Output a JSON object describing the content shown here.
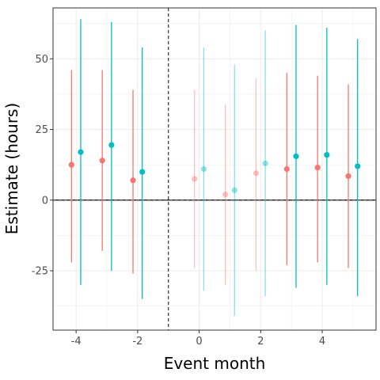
{
  "chart_data": {
    "type": "scatter",
    "title": "",
    "xlabel": "Event month",
    "ylabel": "Estimate (hours)",
    "xlim": [
      -4.75,
      5.75
    ],
    "ylim": [
      -46,
      68
    ],
    "xticks": [
      -4,
      -2,
      0,
      2,
      4
    ],
    "xtick_labels": [
      "-4",
      "-2",
      "0",
      "2",
      "4"
    ],
    "yticks": [
      -25,
      0,
      25,
      50
    ],
    "ytick_labels": [
      "-25",
      "0",
      "25",
      "50"
    ],
    "grid": true,
    "legend": "none",
    "reference_lines": {
      "vertical_dashed_x": -1,
      "horizontal_zero_y": 0
    },
    "colors": {
      "series_a": "#F8766D",
      "series_b": "#00BFC4",
      "panel_border": "#333333",
      "grid": "#ebebeb"
    },
    "series": [
      {
        "color": "#F8766D",
        "points": [
          {
            "x": -4.15,
            "y": 12.5,
            "ymin": -22,
            "ymax": 46,
            "faded": false
          },
          {
            "x": -3.15,
            "y": 14,
            "ymin": -18,
            "ymax": 46,
            "faded": false
          },
          {
            "x": -2.15,
            "y": 7,
            "ymin": -26,
            "ymax": 39,
            "faded": false
          },
          {
            "x": -0.15,
            "y": 7.5,
            "ymin": -24,
            "ymax": 39,
            "faded": true
          },
          {
            "x": 0.85,
            "y": 2,
            "ymin": -30,
            "ymax": 34,
            "faded": true
          },
          {
            "x": 1.85,
            "y": 9.5,
            "ymin": -25,
            "ymax": 43,
            "faded": true
          },
          {
            "x": 2.85,
            "y": 11,
            "ymin": -23,
            "ymax": 45,
            "faded": false
          },
          {
            "x": 3.85,
            "y": 11.5,
            "ymin": -22,
            "ymax": 44,
            "faded": false
          },
          {
            "x": 4.85,
            "y": 8.5,
            "ymin": -24,
            "ymax": 41,
            "faded": false
          }
        ]
      },
      {
        "color": "#00BFC4",
        "points": [
          {
            "x": -3.85,
            "y": 17,
            "ymin": -30,
            "ymax": 64,
            "faded": false
          },
          {
            "x": -2.85,
            "y": 19.5,
            "ymin": -25,
            "ymax": 63,
            "faded": false
          },
          {
            "x": -1.85,
            "y": 10,
            "ymin": -35,
            "ymax": 54,
            "faded": false
          },
          {
            "x": 0.15,
            "y": 11,
            "ymin": -32,
            "ymax": 54,
            "faded": true
          },
          {
            "x": 1.15,
            "y": 3.5,
            "ymin": -41,
            "ymax": 48,
            "faded": true
          },
          {
            "x": 2.15,
            "y": 13,
            "ymin": -34,
            "ymax": 60,
            "faded": true
          },
          {
            "x": 3.15,
            "y": 15.5,
            "ymin": -31,
            "ymax": 62,
            "faded": false
          },
          {
            "x": 4.15,
            "y": 16,
            "ymin": -30,
            "ymax": 61,
            "faded": false
          },
          {
            "x": 5.15,
            "y": 12,
            "ymin": -34,
            "ymax": 57,
            "faded": false
          }
        ]
      }
    ]
  }
}
